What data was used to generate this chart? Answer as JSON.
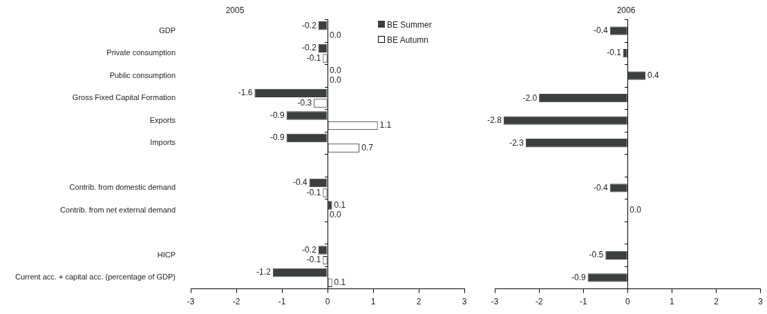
{
  "chart_data": [
    {
      "type": "bar",
      "orientation": "horizontal",
      "title": "2005",
      "categories": [
        "GDP",
        "Private consumption",
        "Public consumption",
        "Gross Fixed Capital Formation",
        "Exports",
        "Imports",
        null,
        "Contrib. from domestic demand",
        "Contrib. from net external demand",
        null,
        "HICP",
        "Current acc. + capital acc. (percentage of GDP)"
      ],
      "series": [
        {
          "name": "BE Summer",
          "color": "#3b403f",
          "values": [
            -0.2,
            -0.2,
            0.0,
            -1.6,
            -0.9,
            -0.9,
            null,
            -0.4,
            0.1,
            null,
            -0.2,
            -1.2
          ],
          "value_labels": [
            "-0.2",
            "-0.2",
            "0.0",
            "-1.6",
            "-0.9",
            "-0.9",
            null,
            "-0.4",
            "0.1",
            null,
            "-0.2",
            "-1.2"
          ]
        },
        {
          "name": "BE Autumn",
          "color": "#ffffff",
          "values": [
            0.0,
            -0.1,
            0.0,
            -0.3,
            1.1,
            0.7,
            null,
            -0.1,
            0.0,
            null,
            -0.1,
            0.1
          ],
          "value_labels": [
            "0.0",
            "-0.1",
            "0.0",
            "-0.3",
            "1.1",
            "0.7",
            null,
            "-0.1",
            "0.0",
            null,
            "-0.1",
            "0.1"
          ]
        }
      ],
      "xlim": [
        -3,
        3
      ],
      "xticks": [
        -3,
        -2,
        -1,
        0,
        1,
        2,
        3
      ],
      "legend": "top right"
    },
    {
      "type": "bar",
      "orientation": "horizontal",
      "title": "2006",
      "categories": [
        null,
        null,
        null,
        null,
        null,
        null,
        null,
        null,
        null,
        null,
        null,
        null
      ],
      "series": [
        {
          "color": "#3b403f",
          "values": [
            -0.4,
            -0.1,
            0.4,
            -2.0,
            -2.8,
            -2.3,
            null,
            -0.4,
            0.0,
            null,
            -0.5,
            -0.9
          ],
          "value_labels": [
            "-0.4",
            "-0.1",
            "0.4",
            "-2.0",
            "-2.8",
            "-2.3",
            null,
            "-0.4",
            "0.0",
            null,
            "-0.5",
            "-0.9"
          ]
        }
      ],
      "xlim": [
        -3,
        3
      ],
      "xticks": [
        -3,
        -2,
        -1,
        0,
        1,
        2,
        3
      ],
      "tick_labels": "x"
    }
  ]
}
